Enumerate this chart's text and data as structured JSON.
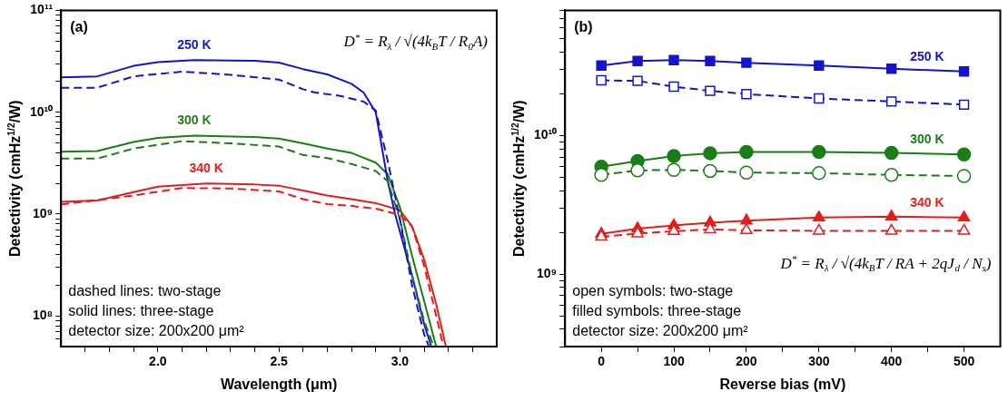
{
  "chart_data": [
    {
      "type": "line",
      "xlabel": "Wavelength (μm)",
      "ylabel": "Detectivity (cmHz$^{1/2}$/W)",
      "log": "y",
      "grid": false,
      "legend": false,
      "xlim": [
        1.6,
        3.4
      ],
      "xticks": [
        {
          "value": 1.7,
          "label": null
        },
        {
          "value": 1.8,
          "label": null
        },
        {
          "value": 1.9,
          "label": null
        },
        {
          "value": 2,
          "label": "2.0"
        },
        {
          "value": 2.1,
          "label": null
        },
        {
          "value": 2.2,
          "label": null
        },
        {
          "value": 2.3,
          "label": null
        },
        {
          "value": 2.4,
          "label": null
        },
        {
          "value": 2.5,
          "label": "2.5"
        },
        {
          "value": 2.6,
          "label": null
        },
        {
          "value": 2.7,
          "label": null
        },
        {
          "value": 2.8,
          "label": null
        },
        {
          "value": 2.9,
          "label": null
        },
        {
          "value": 3,
          "label": "3.0"
        },
        {
          "value": 3.1,
          "label": null
        },
        {
          "value": 3.2,
          "label": null
        },
        {
          "value": 3.3,
          "label": null
        }
      ],
      "ylim": [
        50000000.0,
        100000000000.0
      ],
      "yticks": [
        {
          "value": 60000000.0,
          "label": null
        },
        {
          "value": 70000000.0,
          "label": null
        },
        {
          "value": 80000000.0,
          "label": null
        },
        {
          "value": 90000000.0,
          "label": null
        },
        {
          "value": 100000000.0,
          "label": "10⁸"
        },
        {
          "value": 200000000.0,
          "label": null
        },
        {
          "value": 300000000.0,
          "label": null
        },
        {
          "value": 400000000.0,
          "label": null
        },
        {
          "value": 500000000.0,
          "label": null
        },
        {
          "value": 600000000.0,
          "label": null
        },
        {
          "value": 700000000.0,
          "label": null
        },
        {
          "value": 800000000.0,
          "label": null
        },
        {
          "value": 900000000.0,
          "label": null
        },
        {
          "value": 1000000000.0,
          "label": "10⁹"
        },
        {
          "value": 2000000000.0,
          "label": null
        },
        {
          "value": 3000000000.0,
          "label": null
        },
        {
          "value": 4000000000.0,
          "label": null
        },
        {
          "value": 5000000000.0,
          "label": null
        },
        {
          "value": 6000000000.0,
          "label": null
        },
        {
          "value": 7000000000.0,
          "label": null
        },
        {
          "value": 8000000000.0,
          "label": null
        },
        {
          "value": 9000000000.0,
          "label": null
        },
        {
          "value": 10000000000.0,
          "label": "10¹⁰"
        },
        {
          "value": 20000000000.0,
          "label": null
        },
        {
          "value": 30000000000.0,
          "label": null
        },
        {
          "value": 40000000000.0,
          "label": null
        },
        {
          "value": 50000000000.0,
          "label": null
        },
        {
          "value": 60000000000.0,
          "label": null
        },
        {
          "value": 70000000000.0,
          "label": null
        },
        {
          "value": 80000000000.0,
          "label": null
        },
        {
          "value": 90000000000.0,
          "label": null
        },
        {
          "value": 100000000000.0,
          "label": "10¹¹"
        }
      ],
      "marker": "none",
      "series": [
        {
          "name": "250 K",
          "color": "#1414c8",
          "line_style": "solid",
          "x": [
            1.6,
            1.75,
            1.9,
            2,
            2.15,
            2.4,
            2.5,
            2.6,
            2.7,
            2.8,
            2.85,
            2.9,
            2.95,
            2.98,
            3.05,
            3.1,
            3.13
          ],
          "values": [
            22000000000.0,
            22500000000.0,
            28500000000.0,
            31000000000.0,
            32500000000.0,
            32000000000.0,
            30700000000.0,
            26500000000.0,
            23500000000.0,
            19000000000.0,
            15600000000.0,
            10000000000.0,
            2100000000.0,
            1000000000.0,
            250000000.0,
            83000000.0,
            50000000.0
          ]
        },
        {
          "color": "#1414c8",
          "line_style": "dashed",
          "x": [
            1.6,
            1.75,
            1.9,
            2.1,
            2.3,
            2.5,
            2.6,
            2.65,
            2.75,
            2.85,
            2.9,
            2.95,
            3,
            3.05,
            3.1,
            3.12
          ],
          "values": [
            17400000000.0,
            17400000000.0,
            22500000000.0,
            25000000000.0,
            23300000000.0,
            20900000000.0,
            16800000000.0,
            15600000000.0,
            14500000000.0,
            12700000000.0,
            10400000000.0,
            3300000000.0,
            890000000.0,
            200000000.0,
            66000000.0,
            50000000.0
          ]
        },
        {
          "name": "300 K",
          "color": "#1a7d1a",
          "line_style": "solid",
          "x": [
            1.6,
            1.75,
            1.9,
            2,
            2.15,
            2.4,
            2.5,
            2.6,
            2.7,
            2.8,
            2.9,
            2.95,
            3,
            3.05,
            3.1,
            3.15
          ],
          "values": [
            4100000000.0,
            4150000000.0,
            5100000000.0,
            5600000000.0,
            5900000000.0,
            5700000000.0,
            5500000000.0,
            4950000000.0,
            4400000000.0,
            3980000000.0,
            3200000000.0,
            2450000000.0,
            1170000000.0,
            390000000.0,
            140000000.0,
            50000000.0
          ]
        },
        {
          "color": "#1a7d1a",
          "line_style": "dashed",
          "x": [
            1.6,
            1.75,
            1.9,
            2.1,
            2.3,
            2.5,
            2.6,
            2.7,
            2.8,
            2.9,
            2.95,
            3,
            3.05,
            3.1,
            3.14
          ],
          "values": [
            3500000000.0,
            3500000000.0,
            4400000000.0,
            5200000000.0,
            4950000000.0,
            4600000000.0,
            3800000000.0,
            3550000000.0,
            3100000000.0,
            2650000000.0,
            2100000000.0,
            890000000.0,
            250000000.0,
            90000000.0,
            50000000.0
          ]
        },
        {
          "name": "340 K",
          "color": "#e11e1e",
          "line_style": "solid",
          "x": [
            1.6,
            1.75,
            1.9,
            2,
            2.2,
            2.4,
            2.5,
            2.6,
            2.7,
            2.8,
            2.9,
            3,
            3.05,
            3.1,
            3.15,
            3.19
          ],
          "values": [
            1320000000.0,
            1360000000.0,
            1640000000.0,
            1860000000.0,
            2000000000.0,
            1950000000.0,
            1900000000.0,
            1700000000.0,
            1520000000.0,
            1400000000.0,
            1280000000.0,
            1090000000.0,
            760000000.0,
            360000000.0,
            130000000.0,
            50000000.0
          ]
        },
        {
          "color": "#e11e1e",
          "line_style": "dashed",
          "x": [
            1.6,
            1.9,
            2.1,
            2.3,
            2.5,
            2.6,
            2.7,
            2.8,
            2.9,
            3,
            3.05,
            3.1,
            3.15,
            3.18
          ],
          "values": [
            1240000000.0,
            1520000000.0,
            1800000000.0,
            1780000000.0,
            1670000000.0,
            1400000000.0,
            1250000000.0,
            1200000000.0,
            1130000000.0,
            980000000.0,
            760000000.0,
            310000000.0,
            100000000.0,
            50000000.0
          ]
        }
      ],
      "annotations": [
        "(a)",
        "D$^{*}$ = R$_{λ}$ / √(4k$_{B}$T / R$_{0}$A)",
        "dashed lines: two-stage",
        "solid lines: three-stage",
        "detector size: 200x200 μm²"
      ]
    },
    {
      "type": "line",
      "xlabel": "Reverse bias (mV)",
      "ylabel": "Detectivity (cmHz$^{1/2}$/W)",
      "log": "y",
      "grid": false,
      "legend": false,
      "x": [
        0,
        50,
        100,
        150,
        200,
        300,
        400,
        500
      ],
      "xlim": [
        -50,
        550
      ],
      "xticks": [
        0,
        {
          "value": 50,
          "label": null
        },
        100,
        {
          "value": 150,
          "label": null
        },
        200,
        {
          "value": 250,
          "label": null
        },
        300,
        {
          "value": 350,
          "label": null
        },
        400,
        {
          "value": 450,
          "label": null
        },
        500
      ],
      "ylim": [
        300000000.0,
        80000000000.0
      ],
      "yticks": [
        {
          "value": 300000000.0,
          "label": null
        },
        {
          "value": 400000000.0,
          "label": null
        },
        {
          "value": 500000000.0,
          "label": null
        },
        {
          "value": 600000000.0,
          "label": null
        },
        {
          "value": 700000000.0,
          "label": null
        },
        {
          "value": 800000000.0,
          "label": null
        },
        {
          "value": 900000000.0,
          "label": null
        },
        {
          "value": 1000000000.0,
          "label": "10⁹"
        },
        {
          "value": 2000000000.0,
          "label": null
        },
        {
          "value": 3000000000.0,
          "label": null
        },
        {
          "value": 4000000000.0,
          "label": null
        },
        {
          "value": 5000000000.0,
          "label": null
        },
        {
          "value": 6000000000.0,
          "label": null
        },
        {
          "value": 7000000000.0,
          "label": null
        },
        {
          "value": 8000000000.0,
          "label": null
        },
        {
          "value": 9000000000.0,
          "label": null
        },
        {
          "value": 10000000000.0,
          "label": "10¹⁰"
        },
        {
          "value": 20000000000.0,
          "label": null
        },
        {
          "value": 30000000000.0,
          "label": null
        },
        {
          "value": 40000000000.0,
          "label": null
        },
        {
          "value": 50000000000.0,
          "label": null
        },
        {
          "value": 60000000000.0,
          "label": null
        },
        {
          "value": 70000000000.0,
          "label": null
        },
        {
          "value": 80000000000.0,
          "label": null
        }
      ],
      "series": [
        {
          "name": "250 K",
          "color": "#1414c8",
          "line_style": "solid",
          "marker": "square",
          "values": [
            32000000000.0,
            34500000000.0,
            35000000000.0,
            34500000000.0,
            33500000000.0,
            32000000000.0,
            30300000000.0,
            29000000000.0
          ]
        },
        {
          "color": "#1414c8",
          "line_style": "dashed",
          "marker": "square",
          "values": [
            25000000000.0,
            24800000000.0,
            22500000000.0,
            21000000000.0,
            19900000000.0,
            18500000000.0,
            17600000000.0,
            16700000000.0
          ]
        },
        {
          "name": "300 K",
          "color": "#1a7d1a",
          "line_style": "solid",
          "marker": "circle",
          "values": [
            5950000000.0,
            6550000000.0,
            7100000000.0,
            7450000000.0,
            7600000000.0,
            7600000000.0,
            7500000000.0,
            7300000000.0
          ]
        },
        {
          "color": "#1a7d1a",
          "line_style": "dashed",
          "marker": "circle",
          "values": [
            5200000000.0,
            5600000000.0,
            5650000000.0,
            5550000000.0,
            5400000000.0,
            5350000000.0,
            5200000000.0,
            5100000000.0
          ]
        },
        {
          "name": "340 K",
          "color": "#e11e1e",
          "line_style": "solid",
          "marker": "triangle",
          "values": [
            1950000000.0,
            2130000000.0,
            2240000000.0,
            2350000000.0,
            2430000000.0,
            2560000000.0,
            2600000000.0,
            2560000000.0
          ]
        },
        {
          "color": "#e11e1e",
          "line_style": "dashed",
          "marker": "triangle",
          "values": [
            1860000000.0,
            1960000000.0,
            2040000000.0,
            2100000000.0,
            2070000000.0,
            2050000000.0,
            2050000000.0,
            2050000000.0
          ]
        }
      ],
      "annotations": [
        "(b)",
        "D$^{*}$ = R$_{λ}$ / √(4k$_{B}$T / RA + 2qJ$_{d}$ / N$_{s}$)",
        "open symbols: two-stage",
        "filled symbols: three-stage",
        "detector size: 200x200 μm²"
      ]
    }
  ]
}
